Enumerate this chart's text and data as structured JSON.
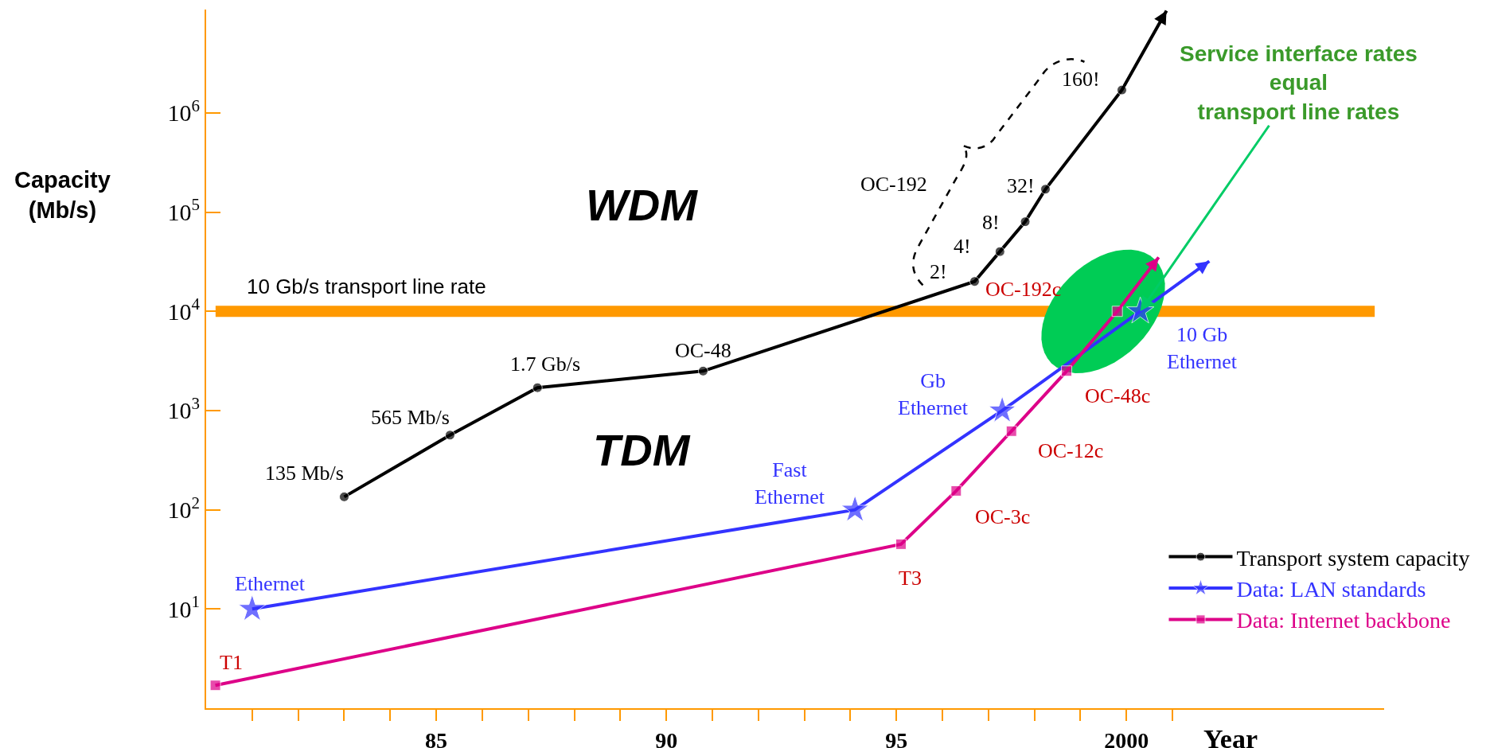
{
  "chart_data": {
    "type": "line",
    "xlabel": "Year",
    "ylabel": "Capacity\n(Mb/s)",
    "log": "y",
    "legend": "bottom right",
    "xlim": [
      1980,
      2005.6
    ],
    "ylim": [
      1,
      11000000
    ],
    "xticks": [
      {
        "value": 1981,
        "label": null
      },
      {
        "value": 1982,
        "label": null
      },
      {
        "value": 1983,
        "label": null
      },
      {
        "value": 1984,
        "label": null
      },
      {
        "value": 1985,
        "label": "85"
      },
      {
        "value": 1986,
        "label": null
      },
      {
        "value": 1987,
        "label": null
      },
      {
        "value": 1988,
        "label": null
      },
      {
        "value": 1989,
        "label": null
      },
      {
        "value": 1990,
        "label": "90"
      },
      {
        "value": 1991,
        "label": null
      },
      {
        "value": 1992,
        "label": null
      },
      {
        "value": 1993,
        "label": null
      },
      {
        "value": 1994,
        "label": null
      },
      {
        "value": 1995,
        "label": "95"
      },
      {
        "value": 1996,
        "label": null
      },
      {
        "value": 1997,
        "label": null
      },
      {
        "value": 1998,
        "label": null
      },
      {
        "value": 1999,
        "label": null
      },
      2000,
      {
        "value": 2001,
        "label": null
      }
    ],
    "yticks": [
      {
        "value": 10,
        "label": "10$^{1}$"
      },
      {
        "value": 100,
        "label": "10$^{2}$"
      },
      {
        "value": 1000,
        "label": "10$^{3}$"
      },
      {
        "value": 10000,
        "label": "10$^{4}$"
      },
      {
        "value": 100000,
        "label": "10$^{5}$"
      },
      {
        "value": 1000000,
        "label": "10$^{6}$"
      }
    ],
    "series": [
      {
        "name": "Transport system capacity",
        "color": "#000000",
        "marker": "circle",
        "x": [
          1983.0,
          1985.3,
          1987.2,
          1990.8,
          1996.7,
          1997.25,
          1997.8,
          1998.24,
          1999.9,
          2000.87
        ],
        "values": [
          135,
          565,
          1700,
          2500,
          20000,
          40000,
          80000,
          170000,
          1700000,
          10700000
        ]
      },
      {
        "name": "Data: LAN standards",
        "color": "#3333ff",
        "marker": "star",
        "x": [
          1981.0,
          1994.1,
          1997.3,
          2000.3,
          2001.8
        ],
        "values": [
          10,
          100,
          1000,
          10000,
          32000
        ]
      },
      {
        "name": "Data: Internet backbone",
        "color": "#dd0088",
        "marker": "square",
        "x": [
          1980.2,
          1995.1,
          1996.3,
          1997.5,
          1998.7,
          1999.8,
          2000.7
        ],
        "values": [
          1.7,
          45,
          155,
          620,
          2500,
          10000,
          35000
        ]
      }
    ],
    "ref_lines": [
      {
        "axis": "y",
        "value": 10000,
        "label": "10 Gb/s transport line rate",
        "color": "#ff9900"
      }
    ],
    "annotations": [
      "WDM",
      "TDM",
      {
        "text": "135 Mb/s",
        "x": 1983.0,
        "y": 135
      },
      {
        "text": "565 Mb/s",
        "x": 1985.3,
        "y": 565
      },
      {
        "text": "1.7 Gb/s",
        "x": 1987.2,
        "y": 1700
      },
      {
        "text": "OC-48",
        "x": 1990.8,
        "y": 2500
      },
      {
        "text": "2!",
        "x": 1996.7,
        "y": 20000
      },
      {
        "text": "4!",
        "x": 1997.25,
        "y": 40000
      },
      {
        "text": "8!",
        "x": 1997.8,
        "y": 80000
      },
      {
        "text": "32!",
        "x": 1998.24,
        "y": 170000
      },
      {
        "text": "160!",
        "x": 1999.9,
        "y": 1700000
      },
      "OC-192",
      {
        "text": "Ethernet",
        "x": 1981.0,
        "y": 10
      },
      {
        "text": "Fast\nEthernet",
        "x": 1994.1,
        "y": 100
      },
      {
        "text": "Gb\nEthernet",
        "x": 1997.3,
        "y": 1000
      },
      {
        "text": "10 Gb\nEthernet",
        "x": 2000.3,
        "y": 10000
      },
      {
        "text": "T1",
        "x": 1980.2,
        "y": 1.7
      },
      {
        "text": "T3",
        "x": 1995.1,
        "y": 45
      },
      {
        "text": "OC-3c",
        "x": 1996.3,
        "y": 155
      },
      {
        "text": "OC-12c",
        "x": 1997.5,
        "y": 620
      },
      {
        "text": "OC-48c",
        "x": 1998.7,
        "y": 2500
      },
      {
        "text": "OC-192c",
        "x": 1999.8,
        "y": 10000
      },
      {
        "text": "Service interface rates\nequal\ntransport line rates",
        "x": 2000.3,
        "y": 10000
      }
    ]
  }
}
